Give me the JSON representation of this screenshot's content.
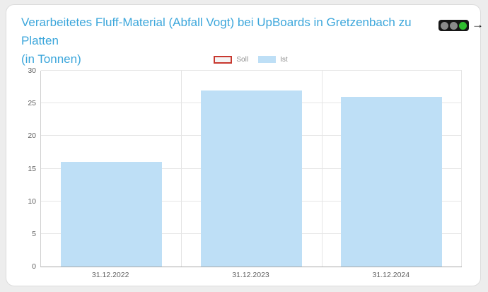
{
  "page": {
    "background_color": "#ededed"
  },
  "card": {
    "background_color": "#ffffff",
    "border_color": "#dcdcdc"
  },
  "header": {
    "title_lines": [
      "Verarbeitetes Fluff-Material (Abfall Vogt) bei UpBoards in Gretzenbach zu Platten",
      "(in Tonnen)"
    ],
    "title_color": "#3ba6db",
    "status_indicator": {
      "type": "traffic-light",
      "body_color": "#161616",
      "lights": [
        {
          "name": "red-light",
          "color": "#8a8a8a",
          "active": false
        },
        {
          "name": "yellow-light",
          "color": "#8a8a8a",
          "active": false
        },
        {
          "name": "green-light",
          "color": "#2fbe2f",
          "active": true
        }
      ]
    },
    "arrow_glyph": "→"
  },
  "legend": {
    "text_color": "#8f8f8f",
    "items": [
      {
        "label": "Soll",
        "swatch_fill": "#f4f4f4",
        "swatch_border_color": "#c8382f",
        "highlighted": true
      },
      {
        "label": "Ist",
        "swatch_fill": "#bedff6",
        "swatch_border_color": null,
        "highlighted": false
      }
    ]
  },
  "chart_data": {
    "type": "bar",
    "title": "Verarbeitetes Fluff-Material (Abfall Vogt) bei UpBoards in Gretzenbach zu Platten (in Tonnen)",
    "categories": [
      "31.12.2022",
      "31.12.2023",
      "31.12.2024"
    ],
    "series": [
      {
        "name": "Soll",
        "color": "#f4f4f4",
        "values": []
      },
      {
        "name": "Ist",
        "color": "#bedff6",
        "values": [
          16,
          27,
          26
        ]
      }
    ],
    "xlabel": "",
    "ylabel": "",
    "ylim": [
      0,
      30
    ],
    "ytick_step": 5,
    "grid": true,
    "legend_position": "top-center",
    "axis_text_color": "#5f5f5f",
    "gridline_color": "#e5e5e5",
    "axis_line_color": "#a8a8a8"
  }
}
